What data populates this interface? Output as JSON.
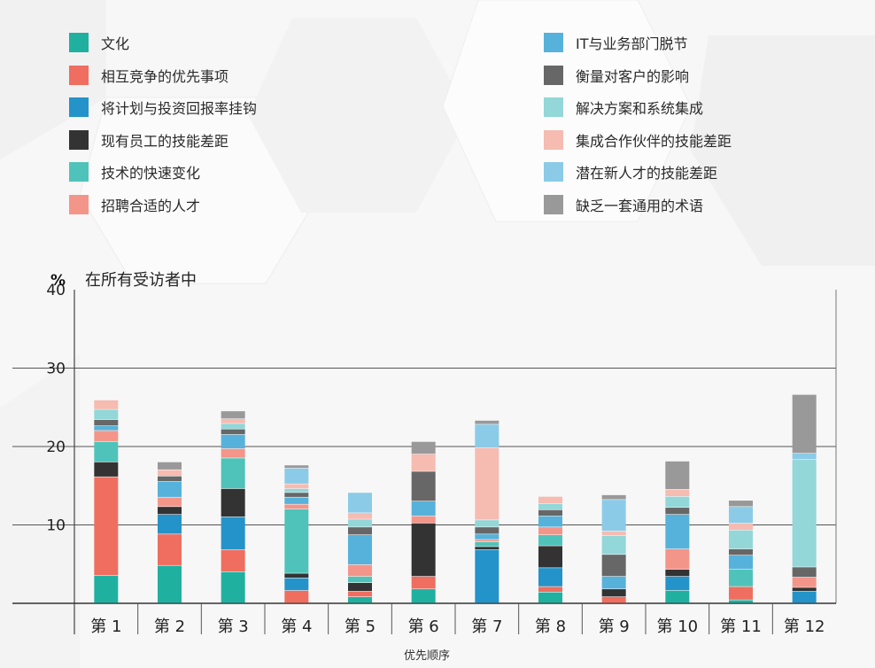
{
  "chart_data": {
    "type": "bar",
    "stacked": true,
    "unit_label": "%",
    "subtitle": "在所有受访者中",
    "xlabel": "优先顺序",
    "ylabel": "",
    "ylim": [
      0,
      40
    ],
    "yticks": [
      10,
      20,
      30,
      40
    ],
    "grid": true,
    "legend_position": "top",
    "categories": [
      "第 1",
      "第 2",
      "第 3",
      "第 4",
      "第 5",
      "第 6",
      "第 7",
      "第 8",
      "第 9",
      "第 10",
      "第 11",
      "第 12"
    ],
    "series": [
      {
        "name": "文化",
        "color": "#20b0a0",
        "values": [
          3.5,
          4.8,
          4.0,
          0.0,
          0.8,
          1.8,
          0.0,
          1.4,
          0.0,
          1.6,
          0.4,
          0.0
        ]
      },
      {
        "name": "相互竞争的优先事项",
        "color": "#ef6e5f",
        "values": [
          12.6,
          4.0,
          2.8,
          1.6,
          0.7,
          1.6,
          0.0,
          0.7,
          0.8,
          0.0,
          1.7,
          0.0
        ]
      },
      {
        "name": "将计划与投资回报率挂钩",
        "color": "#2493c9",
        "values": [
          0.0,
          2.5,
          4.2,
          1.6,
          0.0,
          0.0,
          6.8,
          2.4,
          0.0,
          1.8,
          0.0,
          1.5
        ]
      },
      {
        "name": "现有员工的技能差距",
        "color": "#333333",
        "values": [
          1.9,
          1.0,
          3.6,
          0.6,
          1.1,
          6.8,
          0.4,
          2.8,
          1.0,
          0.9,
          0.0,
          0.5
        ]
      },
      {
        "name": "技术的快速变化",
        "color": "#4fc3b9",
        "values": [
          2.6,
          0.0,
          3.9,
          8.2,
          0.8,
          0.0,
          0.6,
          1.4,
          0.0,
          0.0,
          2.2,
          0.0
        ]
      },
      {
        "name": "招聘合适的人才",
        "color": "#f4958a",
        "values": [
          1.4,
          1.2,
          1.2,
          0.6,
          1.5,
          0.9,
          0.3,
          1.0,
          0.0,
          2.6,
          0.0,
          1.3
        ]
      },
      {
        "name": "IT与业务部门脱节",
        "color": "#56b2da",
        "values": [
          0.6,
          2.0,
          1.8,
          0.9,
          3.8,
          1.9,
          0.7,
          1.4,
          1.6,
          4.4,
          1.8,
          0.0
        ]
      },
      {
        "name": "衡量对客户的影响",
        "color": "#676767",
        "values": [
          0.8,
          0.7,
          0.7,
          0.6,
          1.0,
          3.8,
          0.9,
          0.8,
          2.8,
          0.9,
          0.8,
          1.3
        ]
      },
      {
        "name": "解决方案和系统集成",
        "color": "#93d7d8",
        "values": [
          1.3,
          0.0,
          0.7,
          0.5,
          1.0,
          0.0,
          0.9,
          0.8,
          2.4,
          1.4,
          2.4,
          13.7
        ]
      },
      {
        "name": "集成合作伙伴的技能差距",
        "color": "#f6bbb1",
        "values": [
          1.2,
          0.8,
          0.6,
          0.6,
          0.8,
          2.2,
          9.2,
          0.9,
          0.6,
          0.9,
          0.9,
          0.0
        ]
      },
      {
        "name": "潜在新人才的技能差距",
        "color": "#8bcbe7",
        "values": [
          0.0,
          0.0,
          0.0,
          2.0,
          2.6,
          0.0,
          3.0,
          0.0,
          4.0,
          0.0,
          2.1,
          0.8
        ]
      },
      {
        "name": "缺乏一套通用的术语",
        "color": "#999999",
        "values": [
          0.0,
          1.0,
          1.0,
          0.4,
          0.0,
          1.6,
          0.5,
          0.0,
          0.6,
          3.6,
          0.8,
          7.5
        ]
      }
    ]
  }
}
